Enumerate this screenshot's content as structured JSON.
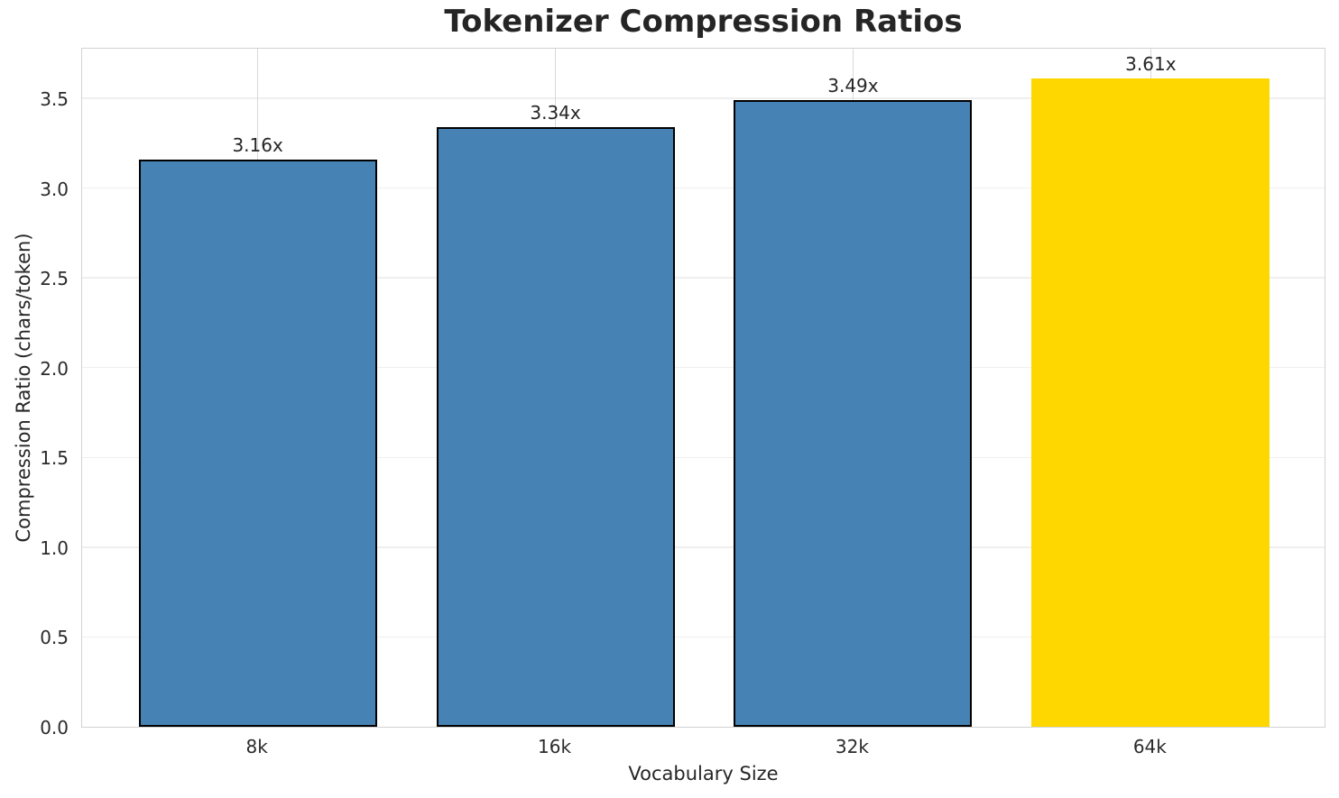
{
  "chart_data": {
    "type": "bar",
    "title": "Tokenizer Compression Ratios",
    "xlabel": "Vocabulary Size",
    "ylabel": "Compression Ratio (chars/token)",
    "categories": [
      "8k",
      "16k",
      "32k",
      "64k"
    ],
    "values": [
      3.16,
      3.34,
      3.49,
      3.61
    ],
    "bar_labels": [
      "3.16x",
      "3.34x",
      "3.49x",
      "3.61x"
    ],
    "bar_colors": [
      "#4682b4",
      "#4682b4",
      "#4682b4",
      "#ffd700"
    ],
    "bar_edge_colors": [
      "#000000",
      "#000000",
      "#000000",
      "none"
    ],
    "yticks": [
      "0.0",
      "0.5",
      "1.0",
      "1.5",
      "2.0",
      "2.5",
      "3.0",
      "3.5"
    ],
    "ylim": [
      0,
      3.786
    ],
    "xlim": [
      -0.59,
      3.59
    ],
    "bar_width_units": 0.8,
    "grid": true,
    "legend": "none",
    "colors": {
      "default_bar": "#4682b4",
      "highlight_bar": "#ffd700",
      "grid_horizontal": "#efefef",
      "grid_vertical": "#d9d9d9",
      "spine": "#d2d2d2",
      "text": "#262626"
    }
  }
}
